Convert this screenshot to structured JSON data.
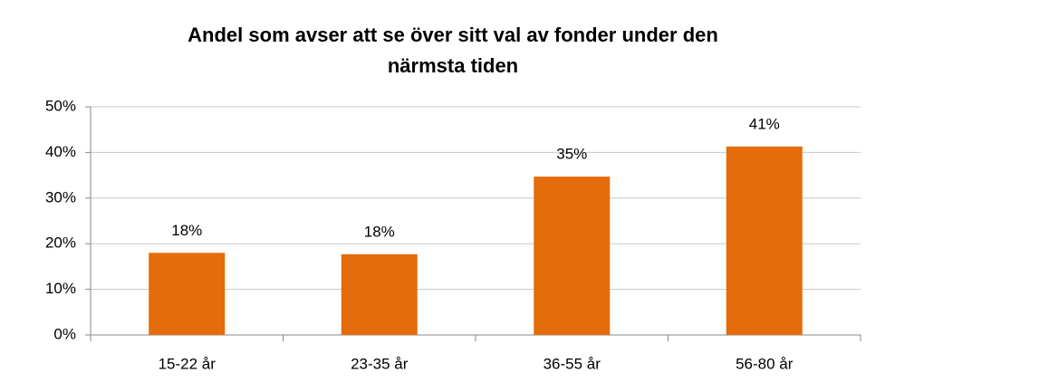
{
  "chart_data": {
    "type": "bar",
    "title": "Andel som avser att se över sitt val av fonder under den\nnärmsta tiden",
    "categories": [
      "15-22 år",
      "23-35 år",
      "36-55 år",
      "56-80 år"
    ],
    "values": [
      18,
      17.7,
      34.7,
      41.3
    ],
    "value_labels": [
      "18%",
      "18%",
      "35%",
      "41%"
    ],
    "color": "#e46c0a",
    "ylim": [
      0,
      50
    ],
    "yticks": [
      {
        "value": 0,
        "label": "0%"
      },
      {
        "value": 10,
        "label": "10%"
      },
      {
        "value": 20,
        "label": "20%"
      },
      {
        "value": 30,
        "label": "30%"
      },
      {
        "value": 40,
        "label": "40%"
      },
      {
        "value": 50,
        "label": "50%"
      }
    ],
    "grid": true
  }
}
